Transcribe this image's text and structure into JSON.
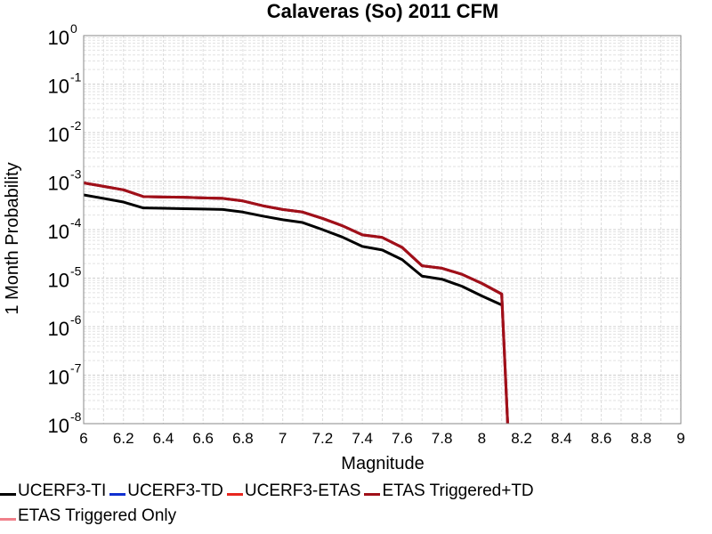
{
  "chart_data": {
    "type": "line",
    "title": "Calaveras (So) 2011 CFM",
    "xlabel": "Magnitude",
    "ylabel": "1 Month Probability",
    "xlim": [
      6,
      9
    ],
    "ylim": [
      1e-08,
      1
    ],
    "yscale": "log",
    "grid": true,
    "legend_position": "bottom",
    "x_ticks": [
      "6",
      "6.2",
      "6.4",
      "6.6",
      "6.8",
      "7",
      "7.2",
      "7.4",
      "7.6",
      "7.8",
      "8",
      "8.2",
      "8.4",
      "8.6",
      "8.8",
      "9"
    ],
    "y_ticks": [
      {
        "base": "10",
        "exp": "0"
      },
      {
        "base": "10",
        "exp": "-1"
      },
      {
        "base": "10",
        "exp": "-2"
      },
      {
        "base": "10",
        "exp": "-3"
      },
      {
        "base": "10",
        "exp": "-4"
      },
      {
        "base": "10",
        "exp": "-5"
      },
      {
        "base": "10",
        "exp": "-6"
      },
      {
        "base": "10",
        "exp": "-7"
      },
      {
        "base": "10",
        "exp": "-8"
      }
    ],
    "x": [
      6.0,
      6.1,
      6.2,
      6.3,
      6.4,
      6.5,
      6.6,
      6.7,
      6.8,
      6.9,
      7.0,
      7.1,
      7.2,
      7.3,
      7.4,
      7.5,
      7.6,
      7.7,
      7.8,
      7.9,
      8.0,
      8.1,
      8.13
    ],
    "series": [
      {
        "name": "UCERF3-TI",
        "color": "#000000",
        "values": [
          0.00052,
          0.00044,
          0.00037,
          0.00028,
          0.000275,
          0.00027,
          0.000265,
          0.00026,
          0.00023,
          0.00019,
          0.00016,
          0.00014,
          0.0001,
          7e-05,
          4.5e-05,
          3.8e-05,
          2.4e-05,
          1.1e-05,
          9.5e-06,
          6.8e-06,
          4.3e-06,
          2.8e-06,
          null
        ]
      },
      {
        "name": "UCERF3-TD",
        "color": "#1030d0",
        "values": [
          0.00092,
          0.00078,
          0.00066,
          0.00048,
          0.00047,
          0.000465,
          0.00045,
          0.00044,
          0.00039,
          0.00031,
          0.00026,
          0.00023,
          0.00017,
          0.00012,
          7.8e-05,
          6.9e-05,
          4.3e-05,
          1.8e-05,
          1.6e-05,
          1.2e-05,
          7.8e-06,
          4.7e-06,
          1e-08
        ]
      },
      {
        "name": "UCERF3-ETAS",
        "color": "#e8261e",
        "values": [
          0.00092,
          0.00078,
          0.00066,
          0.00048,
          0.00047,
          0.000465,
          0.00045,
          0.00044,
          0.00039,
          0.00031,
          0.00026,
          0.00023,
          0.00017,
          0.00012,
          7.8e-05,
          6.9e-05,
          4.3e-05,
          1.8e-05,
          1.6e-05,
          1.2e-05,
          7.8e-06,
          4.7e-06,
          1e-08
        ]
      },
      {
        "name": "ETAS Triggered+TD",
        "color": "#a01018",
        "values": [
          0.00092,
          0.00078,
          0.00066,
          0.00048,
          0.00047,
          0.000465,
          0.00045,
          0.00044,
          0.00039,
          0.00031,
          0.00026,
          0.00023,
          0.00017,
          0.00012,
          7.8e-05,
          6.9e-05,
          4.3e-05,
          1.8e-05,
          1.6e-05,
          1.2e-05,
          7.8e-06,
          4.7e-06,
          1e-08
        ]
      },
      {
        "name": "ETAS Triggered Only",
        "color": "#f0808a",
        "values": [
          null,
          null,
          null,
          null,
          null,
          null,
          null,
          null,
          null,
          null,
          null,
          null,
          null,
          null,
          null,
          null,
          null,
          null,
          null,
          null,
          null,
          null,
          null
        ]
      }
    ]
  }
}
